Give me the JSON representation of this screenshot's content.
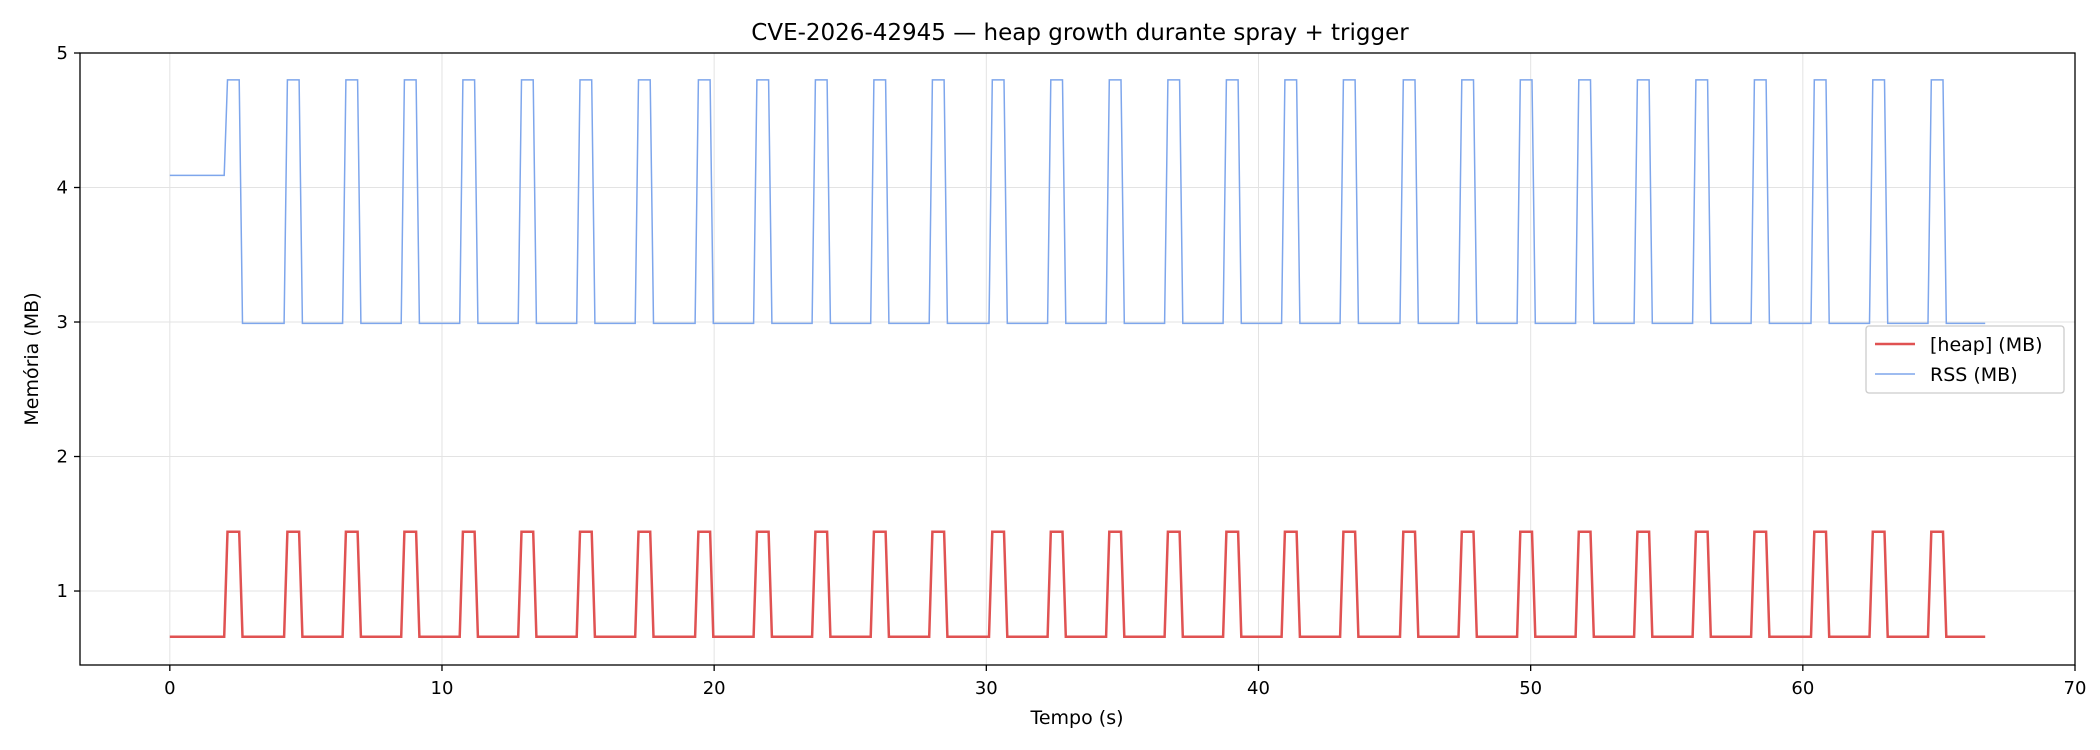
{
  "chart_data": {
    "type": "line",
    "title": "CVE-2026-42945 — heap growth durante spray + trigger",
    "xlabel": "Tempo (s)",
    "ylabel": "Memória (MB)",
    "xlim": [
      -3.3,
      70
    ],
    "ylim": [
      0.45,
      5
    ],
    "xticks": [
      0,
      10,
      20,
      30,
      40,
      50,
      60,
      70
    ],
    "yticks": [
      1,
      2,
      3,
      4,
      5
    ],
    "grid": true,
    "legend_position": "center-right",
    "series": [
      {
        "name": "[heap] (MB)",
        "color": "#e05252",
        "baseline": 0.66,
        "peak": 1.44,
        "pulse_starts": [
          2.0,
          4.2,
          6.35,
          8.5,
          10.65,
          12.8,
          14.95,
          17.1,
          19.3,
          21.45,
          23.6,
          25.75,
          27.9,
          30.1,
          32.25,
          34.4,
          36.55,
          38.7,
          40.85,
          43.0,
          45.2,
          47.35,
          49.5,
          51.65,
          53.8,
          55.95,
          58.1,
          60.3,
          62.45,
          64.6
        ],
        "pulse_width": 0.55,
        "x_end": 66.7
      },
      {
        "name": "RSS (MB)",
        "color": "#7ea6ec",
        "initial": 4.09,
        "baseline": 2.99,
        "peak": 4.8,
        "pulse_starts": [
          2.0,
          4.2,
          6.35,
          8.5,
          10.65,
          12.8,
          14.95,
          17.1,
          19.3,
          21.45,
          23.6,
          25.75,
          27.9,
          30.1,
          32.25,
          34.4,
          36.55,
          38.7,
          40.85,
          43.0,
          45.2,
          47.35,
          49.5,
          51.65,
          53.8,
          55.95,
          58.1,
          60.3,
          62.45,
          64.6
        ],
        "pulse_width": 0.55,
        "x_end": 66.7
      }
    ]
  }
}
